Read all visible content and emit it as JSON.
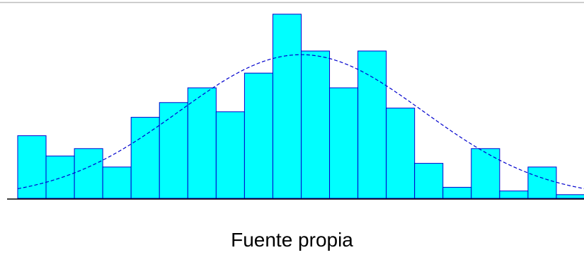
{
  "caption": "Fuente propia",
  "chart_data": {
    "type": "bar",
    "subtype": "histogram-with-normal-curve",
    "title": "",
    "xlabel": "",
    "ylabel": "",
    "bin_count": 20,
    "values": [
      34,
      23,
      27,
      17,
      44,
      52,
      60,
      47,
      68,
      100,
      80,
      60,
      80,
      49,
      19,
      6,
      27,
      4,
      17,
      2
    ],
    "normal_curve": {
      "peak_bin_position": 9,
      "peak_value": 78,
      "sigma_in_bins": 4.3
    },
    "ylim": [
      0,
      100
    ],
    "grid": false,
    "legend": "none",
    "colors": {
      "bar_fill": "#00ffff",
      "bar_stroke": "#0000cd",
      "curve": "#0000cd",
      "baseline": "#000000",
      "top_rule": "#bdbdbd"
    }
  }
}
